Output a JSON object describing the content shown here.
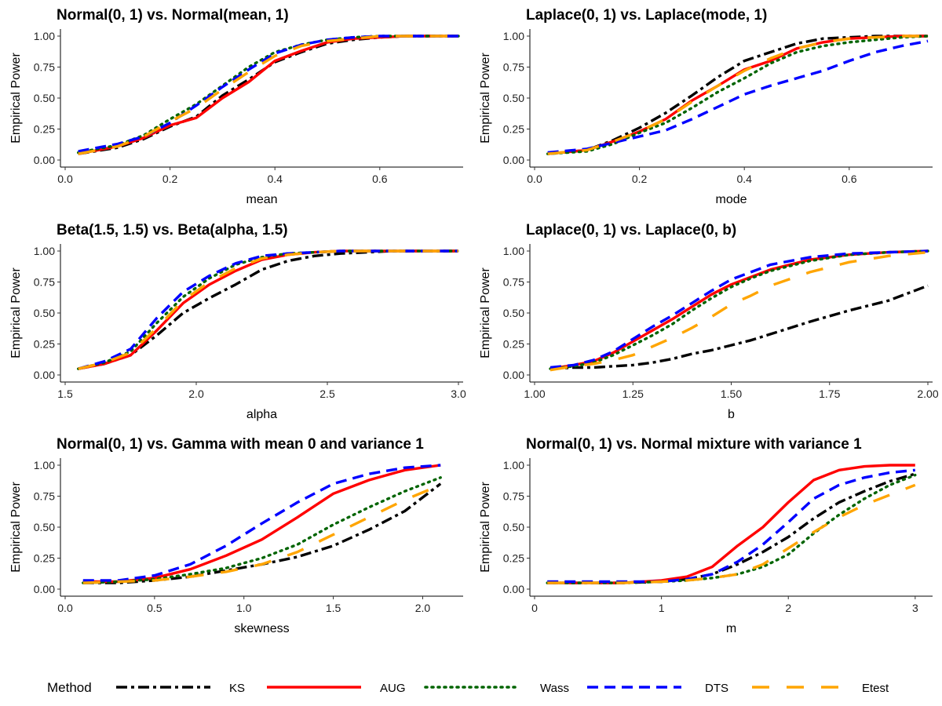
{
  "legend": {
    "title": "Method",
    "entries": [
      {
        "name": "KS",
        "color": "#000000",
        "style": "dashdot"
      },
      {
        "name": "AUG",
        "color": "#ff0000",
        "style": "solid"
      },
      {
        "name": "Wass",
        "color": "#006400",
        "style": "dotted"
      },
      {
        "name": "DTS",
        "color": "#0000ff",
        "style": "dashed"
      },
      {
        "name": "Etest",
        "color": "#ffa500",
        "style": "longdash"
      }
    ]
  },
  "chart_data": [
    {
      "type": "line",
      "title": "Normal(0, 1) vs. Normal(mean, 1)",
      "xlabel": "mean",
      "ylabel": "Empirical Power",
      "xlim": [
        0,
        0.75
      ],
      "ylim": [
        0,
        1
      ],
      "xticks": [
        0.0,
        0.2,
        0.4,
        0.6
      ],
      "xtick_labels": [
        "0.0",
        "0.2",
        "0.4",
        "0.6"
      ],
      "yticks": [
        0,
        0.25,
        0.5,
        0.75,
        1
      ],
      "ytick_labels": [
        "0.00",
        "0.25",
        "0.50",
        "0.75",
        "1.00"
      ],
      "x": [
        0.025,
        0.1,
        0.15,
        0.2,
        0.25,
        0.3,
        0.35,
        0.4,
        0.45,
        0.5,
        0.55,
        0.6,
        0.65,
        0.7,
        0.75
      ],
      "series": [
        {
          "name": "KS",
          "values": [
            0.05,
            0.1,
            0.17,
            0.27,
            0.35,
            0.52,
            0.65,
            0.79,
            0.87,
            0.94,
            0.97,
            0.99,
            1.0,
            1.0,
            1.0
          ]
        },
        {
          "name": "AUG",
          "values": [
            0.05,
            0.11,
            0.18,
            0.28,
            0.34,
            0.5,
            0.63,
            0.8,
            0.88,
            0.95,
            0.98,
            0.99,
            1.0,
            1.0,
            1.0
          ]
        },
        {
          "name": "Wass",
          "values": [
            0.06,
            0.12,
            0.2,
            0.33,
            0.45,
            0.6,
            0.75,
            0.87,
            0.93,
            0.97,
            0.99,
            1.0,
            1.0,
            1.0,
            1.0
          ]
        },
        {
          "name": "DTS",
          "values": [
            0.07,
            0.13,
            0.19,
            0.3,
            0.44,
            0.59,
            0.73,
            0.86,
            0.93,
            0.97,
            0.99,
            1.0,
            1.0,
            1.0,
            1.0
          ]
        },
        {
          "name": "Etest",
          "values": [
            0.05,
            0.11,
            0.19,
            0.31,
            0.42,
            0.57,
            0.71,
            0.84,
            0.92,
            0.96,
            0.98,
            1.0,
            1.0,
            1.0,
            1.0
          ]
        }
      ]
    },
    {
      "type": "line",
      "title": "Laplace(0, 1) vs. Laplace(mode, 1)",
      "xlabel": "mode",
      "ylabel": "Empirical Power",
      "xlim": [
        0,
        0.75
      ],
      "ylim": [
        0,
        1
      ],
      "xticks": [
        0.0,
        0.2,
        0.4,
        0.6
      ],
      "xtick_labels": [
        "0.0",
        "0.2",
        "0.4",
        "0.6"
      ],
      "yticks": [
        0,
        0.25,
        0.5,
        0.75,
        1
      ],
      "ytick_labels": [
        "0.00",
        "0.25",
        "0.50",
        "0.75",
        "1.00"
      ],
      "x": [
        0.025,
        0.1,
        0.15,
        0.2,
        0.25,
        0.3,
        0.35,
        0.4,
        0.45,
        0.5,
        0.55,
        0.6,
        0.65,
        0.7,
        0.75
      ],
      "series": [
        {
          "name": "KS",
          "values": [
            0.05,
            0.08,
            0.16,
            0.26,
            0.38,
            0.52,
            0.67,
            0.8,
            0.87,
            0.94,
            0.98,
            0.99,
            1.0,
            1.0,
            1.0
          ]
        },
        {
          "name": "AUG",
          "values": [
            0.05,
            0.08,
            0.15,
            0.23,
            0.33,
            0.48,
            0.6,
            0.73,
            0.8,
            0.9,
            0.95,
            0.98,
            0.99,
            1.0,
            1.0
          ]
        },
        {
          "name": "Wass",
          "values": [
            0.05,
            0.07,
            0.13,
            0.22,
            0.3,
            0.42,
            0.55,
            0.66,
            0.78,
            0.87,
            0.92,
            0.95,
            0.97,
            0.99,
            1.0
          ]
        },
        {
          "name": "DTS",
          "values": [
            0.06,
            0.09,
            0.14,
            0.19,
            0.24,
            0.33,
            0.43,
            0.53,
            0.6,
            0.66,
            0.72,
            0.8,
            0.87,
            0.92,
            0.96
          ]
        },
        {
          "name": "Etest",
          "values": [
            0.05,
            0.08,
            0.15,
            0.23,
            0.33,
            0.47,
            0.6,
            0.72,
            0.82,
            0.9,
            0.95,
            0.98,
            0.99,
            1.0,
            1.0
          ]
        }
      ]
    },
    {
      "type": "line",
      "title": "Beta(1.5, 1.5) vs. Beta(alpha, 1.5)",
      "xlabel": "alpha",
      "ylabel": "Empirical Power",
      "xlim": [
        1.5,
        3.0
      ],
      "ylim": [
        0,
        1
      ],
      "xticks": [
        1.5,
        2.0,
        2.5,
        3.0
      ],
      "xtick_labels": [
        "1.5",
        "2.0",
        "2.5",
        "3.0"
      ],
      "yticks": [
        0,
        0.25,
        0.5,
        0.75,
        1
      ],
      "ytick_labels": [
        "0.00",
        "0.25",
        "0.50",
        "0.75",
        "1.00"
      ],
      "x": [
        1.55,
        1.65,
        1.75,
        1.85,
        1.95,
        2.05,
        2.15,
        2.25,
        2.35,
        2.45,
        2.55,
        2.65,
        2.75,
        2.85,
        3.0
      ],
      "series": [
        {
          "name": "KS",
          "values": [
            0.05,
            0.09,
            0.16,
            0.32,
            0.5,
            0.62,
            0.73,
            0.85,
            0.92,
            0.96,
            0.98,
            0.99,
            1.0,
            1.0,
            1.0
          ]
        },
        {
          "name": "AUG",
          "values": [
            0.05,
            0.09,
            0.16,
            0.36,
            0.58,
            0.73,
            0.84,
            0.93,
            0.97,
            0.99,
            1.0,
            1.0,
            1.0,
            1.0,
            1.0
          ]
        },
        {
          "name": "Wass",
          "values": [
            0.05,
            0.1,
            0.19,
            0.42,
            0.63,
            0.78,
            0.89,
            0.95,
            0.98,
            0.99,
            1.0,
            1.0,
            1.0,
            1.0,
            1.0
          ]
        },
        {
          "name": "DTS",
          "values": [
            0.05,
            0.11,
            0.21,
            0.46,
            0.67,
            0.8,
            0.9,
            0.96,
            0.98,
            0.99,
            1.0,
            1.0,
            1.0,
            1.0,
            1.0
          ]
        },
        {
          "name": "Etest",
          "values": [
            0.05,
            0.1,
            0.18,
            0.38,
            0.6,
            0.75,
            0.86,
            0.94,
            0.97,
            0.99,
            1.0,
            1.0,
            1.0,
            1.0,
            1.0
          ]
        }
      ]
    },
    {
      "type": "line",
      "title": "Laplace(0, 1) vs. Laplace(0, b)",
      "xlabel": "b",
      "ylabel": "Empirical Power",
      "xlim": [
        1.0,
        2.0
      ],
      "ylim": [
        0,
        1
      ],
      "xticks": [
        1.0,
        1.25,
        1.5,
        1.75,
        2.0
      ],
      "xtick_labels": [
        "1.00",
        "1.25",
        "1.50",
        "1.75",
        "2.00"
      ],
      "yticks": [
        0,
        0.25,
        0.5,
        0.75,
        1
      ],
      "ytick_labels": [
        "0.00",
        "0.25",
        "0.50",
        "0.75",
        "1.00"
      ],
      "x": [
        1.04,
        1.1,
        1.15,
        1.2,
        1.25,
        1.3,
        1.35,
        1.4,
        1.45,
        1.5,
        1.55,
        1.6,
        1.7,
        1.8,
        1.9,
        2.0
      ],
      "series": [
        {
          "name": "KS",
          "values": [
            0.05,
            0.06,
            0.06,
            0.07,
            0.08,
            0.1,
            0.13,
            0.17,
            0.2,
            0.24,
            0.28,
            0.33,
            0.43,
            0.52,
            0.6,
            0.72
          ]
        },
        {
          "name": "AUG",
          "values": [
            0.05,
            0.08,
            0.11,
            0.18,
            0.27,
            0.36,
            0.45,
            0.55,
            0.65,
            0.73,
            0.79,
            0.85,
            0.93,
            0.97,
            0.99,
            1.0
          ]
        },
        {
          "name": "Wass",
          "values": [
            0.05,
            0.07,
            0.1,
            0.16,
            0.24,
            0.32,
            0.41,
            0.52,
            0.62,
            0.71,
            0.78,
            0.84,
            0.92,
            0.97,
            0.99,
            1.0
          ]
        },
        {
          "name": "DTS",
          "values": [
            0.06,
            0.08,
            0.12,
            0.19,
            0.29,
            0.39,
            0.48,
            0.58,
            0.68,
            0.77,
            0.83,
            0.89,
            0.95,
            0.98,
            0.99,
            1.0
          ]
        },
        {
          "name": "Etest",
          "values": [
            0.04,
            0.07,
            0.09,
            0.12,
            0.16,
            0.23,
            0.3,
            0.38,
            0.47,
            0.57,
            0.64,
            0.72,
            0.83,
            0.91,
            0.96,
            0.99
          ]
        }
      ]
    },
    {
      "type": "line",
      "title": "Normal(0, 1) vs. Gamma with mean 0 and variance 1",
      "xlabel": "skewness",
      "ylabel": "Empirical Power",
      "xlim": [
        0,
        2.2
      ],
      "ylim": [
        0,
        1
      ],
      "xticks": [
        0.0,
        0.5,
        1.0,
        1.5,
        2.0
      ],
      "xtick_labels": [
        "0.0",
        "0.5",
        "1.0",
        "1.5",
        "2.0"
      ],
      "yticks": [
        0,
        0.25,
        0.5,
        0.75,
        1
      ],
      "ytick_labels": [
        "0.00",
        "0.25",
        "0.50",
        "0.75",
        "1.00"
      ],
      "x": [
        0.1,
        0.3,
        0.5,
        0.7,
        0.9,
        1.1,
        1.3,
        1.5,
        1.7,
        1.9,
        2.1
      ],
      "series": [
        {
          "name": "KS",
          "values": [
            0.05,
            0.05,
            0.07,
            0.1,
            0.15,
            0.2,
            0.26,
            0.35,
            0.48,
            0.63,
            0.85
          ]
        },
        {
          "name": "AUG",
          "values": [
            0.06,
            0.06,
            0.09,
            0.16,
            0.27,
            0.4,
            0.58,
            0.77,
            0.88,
            0.96,
            1.0
          ]
        },
        {
          "name": "Wass",
          "values": [
            0.05,
            0.06,
            0.08,
            0.12,
            0.17,
            0.25,
            0.36,
            0.52,
            0.66,
            0.79,
            0.9
          ]
        },
        {
          "name": "DTS",
          "values": [
            0.07,
            0.07,
            0.11,
            0.2,
            0.35,
            0.53,
            0.7,
            0.85,
            0.93,
            0.98,
            1.0
          ]
        },
        {
          "name": "Etest",
          "values": [
            0.05,
            0.06,
            0.07,
            0.1,
            0.14,
            0.2,
            0.3,
            0.44,
            0.58,
            0.72,
            0.84
          ]
        }
      ]
    },
    {
      "type": "line",
      "title": "Normal(0, 1) vs. Normal mixture with variance 1",
      "xlabel": "m",
      "ylabel": "Empirical Power",
      "xlim": [
        0,
        3.1
      ],
      "ylim": [
        0,
        1
      ],
      "xticks": [
        0,
        1,
        2,
        3
      ],
      "xtick_labels": [
        "0",
        "1",
        "2",
        "3"
      ],
      "yticks": [
        0,
        0.25,
        0.5,
        0.75,
        1
      ],
      "ytick_labels": [
        "0.00",
        "0.25",
        "0.50",
        "0.75",
        "1.00"
      ],
      "x": [
        0.1,
        0.4,
        0.7,
        1.0,
        1.2,
        1.4,
        1.6,
        1.8,
        2.0,
        2.2,
        2.4,
        2.6,
        2.8,
        3.0
      ],
      "series": [
        {
          "name": "KS",
          "values": [
            0.05,
            0.05,
            0.05,
            0.06,
            0.08,
            0.12,
            0.2,
            0.3,
            0.42,
            0.57,
            0.7,
            0.79,
            0.87,
            0.93
          ]
        },
        {
          "name": "AUG",
          "values": [
            0.05,
            0.05,
            0.05,
            0.07,
            0.1,
            0.18,
            0.35,
            0.5,
            0.7,
            0.88,
            0.96,
            0.99,
            1.0,
            1.0
          ]
        },
        {
          "name": "Wass",
          "values": [
            0.05,
            0.05,
            0.05,
            0.06,
            0.07,
            0.09,
            0.12,
            0.18,
            0.28,
            0.45,
            0.6,
            0.73,
            0.84,
            0.92
          ]
        },
        {
          "name": "DTS",
          "values": [
            0.06,
            0.06,
            0.06,
            0.06,
            0.08,
            0.12,
            0.22,
            0.36,
            0.54,
            0.73,
            0.84,
            0.9,
            0.94,
            0.96
          ]
        },
        {
          "name": "Etest",
          "values": [
            0.05,
            0.05,
            0.05,
            0.06,
            0.07,
            0.09,
            0.12,
            0.2,
            0.33,
            0.46,
            0.58,
            0.68,
            0.76,
            0.84
          ]
        }
      ]
    }
  ]
}
